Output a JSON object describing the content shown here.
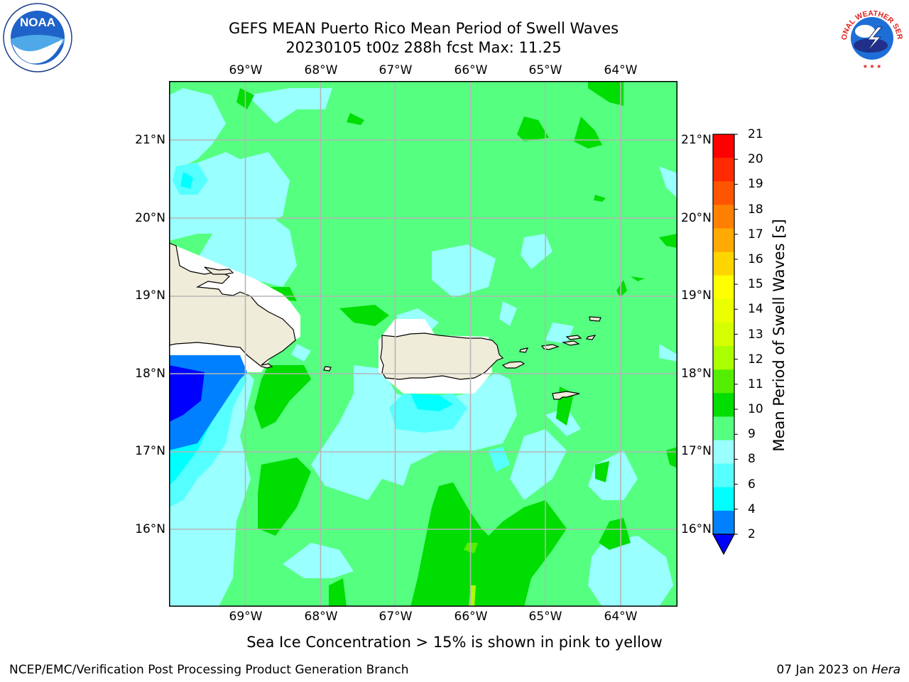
{
  "header": {
    "title_line1": "GEFS MEAN Puerto Rico Mean Period of Swell Waves",
    "title_line2": "20230105 t00z 288h fcst   Max: 11.25"
  },
  "logos": {
    "left": "NOAA",
    "right": "NATIONAL WEATHER SERVICE"
  },
  "map": {
    "lon_labels": [
      "69°W",
      "68°W",
      "67°W",
      "66°W",
      "65°W",
      "64°W"
    ],
    "lat_labels": [
      "21°N",
      "20°N",
      "19°N",
      "18°N",
      "17°N",
      "16°N"
    ]
  },
  "colorbar": {
    "label": "Mean Period of Swell Waves [s]",
    "ticks": [
      "21",
      "20",
      "19",
      "18",
      "17",
      "16",
      "15",
      "14",
      "13",
      "12",
      "11",
      "10",
      "9",
      "8",
      "6",
      "4",
      "2"
    ],
    "colors": [
      "#ff0000",
      "#ff2a00",
      "#ff5500",
      "#ff8000",
      "#ffaa00",
      "#ffd500",
      "#ffff00",
      "#eaff00",
      "#d5ff00",
      "#aaff00",
      "#55ee00",
      "#00dd00",
      "#55ff80",
      "#99ffff",
      "#55ffff",
      "#00ffff",
      "#0080ff"
    ],
    "under_color": "#0000ff"
  },
  "footer": {
    "note": "Sea Ice Concentration > 15% is shown in pink to yellow",
    "branch": "NCEP/EMC/Verification Post Processing Product Generation Branch",
    "date": "07 Jan 2023 on",
    "machine": "Hera"
  }
}
